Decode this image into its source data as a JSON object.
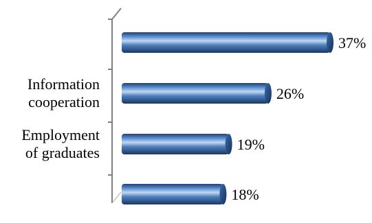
{
  "chart_data": {
    "type": "bar",
    "orientation": "horizontal",
    "style": "3d-cylinder",
    "categories": [
      "",
      [
        "Information",
        "cooperation"
      ],
      [
        "Employment",
        "of graduates"
      ],
      ""
    ],
    "values": [
      37,
      26,
      19,
      18
    ],
    "value_labels": [
      "37%",
      "26%",
      "19%",
      "18%"
    ],
    "unit": "%",
    "xlim": [
      0,
      37
    ],
    "grid": false,
    "legend": "none",
    "colors": {
      "bar": "#4f81bd",
      "bar_dark": "#1f3f73",
      "bar_light": "#c3d7f0",
      "axis": "#808080"
    }
  }
}
